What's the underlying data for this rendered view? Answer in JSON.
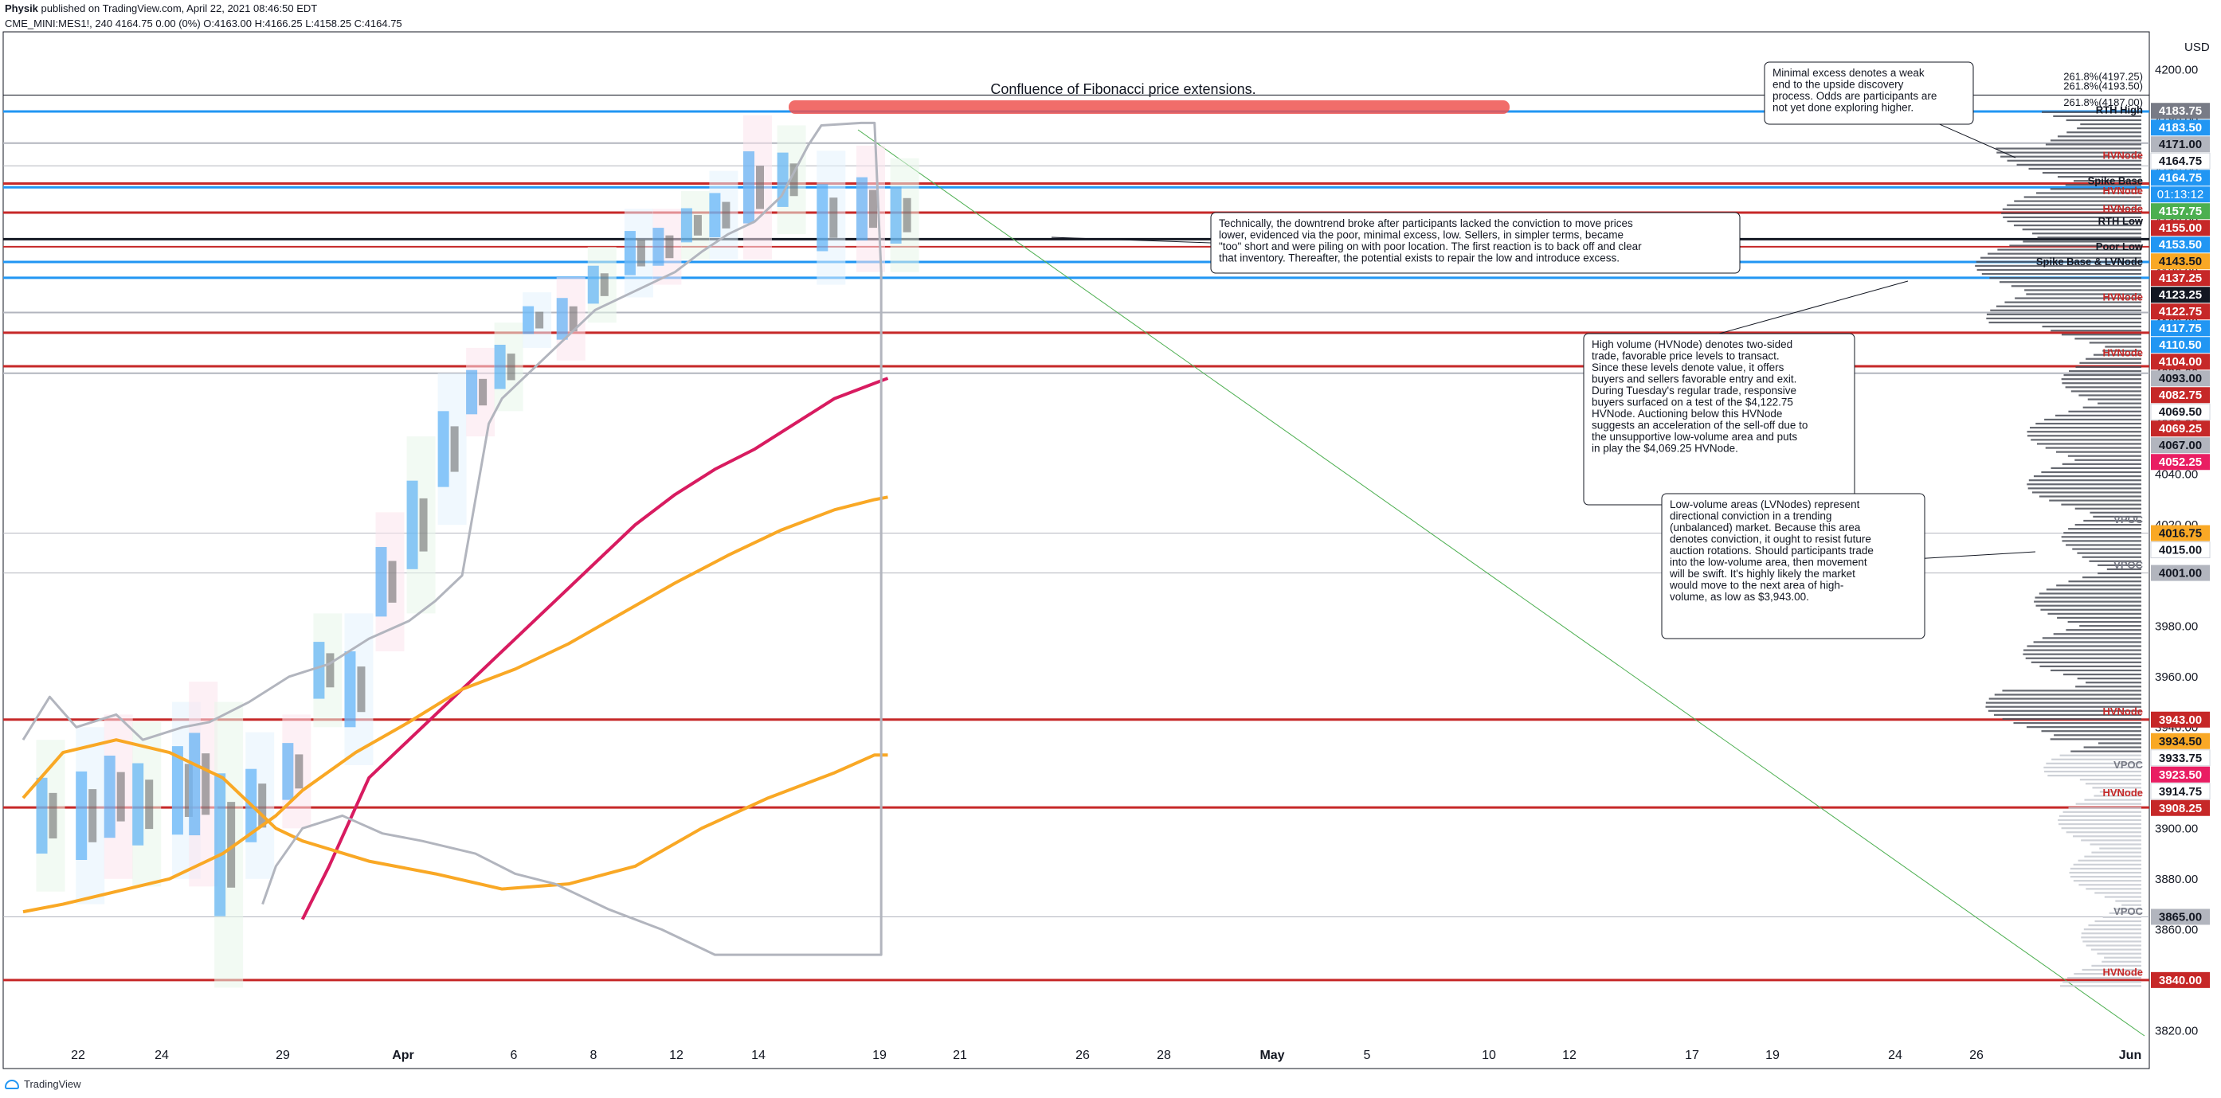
{
  "header": {
    "author": "Physik",
    "published": "published on TradingView.com, April 22, 2021 08:46:50 EDT",
    "symbol_line": "CME_MINI:MES1!, 240  4164.75 0.00 (0%) O:4163.00 H:4166.25 L:4158.25 C:4164.75"
  },
  "footer": {
    "brand": "TradingView"
  },
  "chart_data": {
    "type": "line",
    "title": "Confluence of Fibonacci price extensions.",
    "currency_label": "USD",
    "ylim": [
      3805,
      4215
    ],
    "y_ticks": [
      3820,
      3840,
      3860,
      3880,
      3900,
      3920,
      3940,
      3960,
      3980,
      4000,
      4020,
      4040,
      4060,
      4080,
      4100,
      4120,
      4140,
      4160,
      4180,
      4200
    ],
    "y_tick_labels": [
      "3820.00",
      "3840.00",
      "3860.00",
      "3880.00",
      "3900.00",
      "3920.00",
      "3940.00",
      "3960.00",
      "3980.00",
      "4000.00",
      "4020.00",
      "4040.00",
      "4060.00",
      "4080.00",
      "4100.00",
      "4120.00",
      "4140.00",
      "4160.00",
      "4180.00",
      "4200.00"
    ],
    "x_ticks": [
      "22",
      "24",
      "29",
      "Apr",
      "6",
      "8",
      "12",
      "14",
      "19",
      "21",
      "26",
      "28",
      "May",
      "5",
      "10",
      "12",
      "17",
      "19",
      "24",
      "26",
      "Jun"
    ],
    "price_tags": [
      {
        "value": 4183.75,
        "text": "4183.75",
        "color": "#787b86"
      },
      {
        "value": 4183.5,
        "text": "4183.50",
        "color": "#2196f3"
      },
      {
        "value": 4171.0,
        "text": "4171.00",
        "color": "#b2b5be"
      },
      {
        "value": 4164.75,
        "text": "4164.75",
        "color": "#ffffff"
      },
      {
        "value": 4164.75,
        "text": "4164.75",
        "color": "#2196f3"
      },
      {
        "value": 4157.75,
        "text": "4157.75",
        "color": "#4caf50"
      },
      {
        "value": 4155.0,
        "text": "4155.00",
        "color": "#c62828"
      },
      {
        "value": 4153.5,
        "text": "4153.50",
        "color": "#2196f3"
      },
      {
        "value": 4143.5,
        "text": "4143.50",
        "color": "#f9a825"
      },
      {
        "value": 4137.25,
        "text": "4137.25",
        "color": "#c62828"
      },
      {
        "value": 4123.25,
        "text": "4123.25",
        "color": "#131722"
      },
      {
        "value": 4122.75,
        "text": "4122.75",
        "color": "#c62828"
      },
      {
        "value": 4117.75,
        "text": "4117.75",
        "color": "#2196f3"
      },
      {
        "value": 4110.5,
        "text": "4110.50",
        "color": "#2196f3"
      },
      {
        "value": 4104.0,
        "text": "4104.00",
        "color": "#c62828"
      },
      {
        "value": 4093.0,
        "text": "4093.00",
        "color": "#b2b5be"
      },
      {
        "value": 4082.75,
        "text": "4082.75",
        "color": "#c62828"
      },
      {
        "value": 4069.5,
        "text": "4069.50",
        "color": "#ffffff"
      },
      {
        "value": 4069.25,
        "text": "4069.25",
        "color": "#c62828"
      },
      {
        "value": 4067.0,
        "text": "4067.00",
        "color": "#b2b5be"
      },
      {
        "value": 4052.25,
        "text": "4052.25",
        "color": "#e91e63"
      },
      {
        "value": 4016.75,
        "text": "4016.75",
        "color": "#f9a825"
      },
      {
        "value": 4015.0,
        "text": "4015.00",
        "color": "#ffffff"
      },
      {
        "value": 4001.0,
        "text": "4001.00",
        "color": "#b2b5be"
      },
      {
        "value": 3943.0,
        "text": "3943.00",
        "color": "#c62828"
      },
      {
        "value": 3934.5,
        "text": "3934.50",
        "color": "#f9a825"
      },
      {
        "value": 3933.75,
        "text": "3933.75",
        "color": "#ffffff"
      },
      {
        "value": 3923.5,
        "text": "3923.50",
        "color": "#e91e63"
      },
      {
        "value": 3914.75,
        "text": "3914.75",
        "color": "#ffffff"
      },
      {
        "value": 3908.25,
        "text": "3908.25",
        "color": "#c62828"
      },
      {
        "value": 3865.0,
        "text": "3865.00",
        "color": "#b2b5be"
      },
      {
        "value": 3840.0,
        "text": "3840.00",
        "color": "#c62828"
      }
    ],
    "countdown": "01:13:12",
    "level_labels": [
      {
        "text": "261.8%(4197.25)",
        "value": 4197.25
      },
      {
        "text": "261.8%(4193.50)",
        "value": 4193.5
      },
      {
        "text": "261.8%(4187.00)",
        "value": 4187
      },
      {
        "text": "RTH High",
        "value": 4184
      },
      {
        "text": "HVNode",
        "value": 4166
      },
      {
        "text": "Spike Base",
        "value": 4156
      },
      {
        "text": "HVNode",
        "value": 4152
      },
      {
        "text": "HVNode",
        "value": 4145
      },
      {
        "text": "RTH Low",
        "value": 4140
      },
      {
        "text": "Poor Low",
        "value": 4130
      },
      {
        "text": "Spike Base & LVNode",
        "value": 4124
      },
      {
        "text": "HVNode",
        "value": 4110
      },
      {
        "text": "HVNode",
        "value": 4088
      },
      {
        "text": "VPOC",
        "value": 4022
      },
      {
        "text": "VPOC",
        "value": 4004
      },
      {
        "text": "HVNode",
        "value": 3946
      },
      {
        "text": "VPOC",
        "value": 3925
      },
      {
        "text": "HVNode",
        "value": 3914
      },
      {
        "text": "VPOC",
        "value": 3867
      },
      {
        "text": "HVNode",
        "value": 3843
      }
    ],
    "horizontal_levels": [
      {
        "value": 4190,
        "color": "#131722",
        "width": 1
      },
      {
        "value": 4183.5,
        "color": "#2196f3",
        "width": 3
      },
      {
        "value": 4171,
        "color": "#b2b5be",
        "width": 2
      },
      {
        "value": 4162,
        "color": "#b2b5be",
        "width": 1
      },
      {
        "value": 4155,
        "color": "#c62828",
        "width": 3
      },
      {
        "value": 4153.5,
        "color": "#2196f3",
        "width": 3
      },
      {
        "value": 4143.5,
        "color": "#c62828",
        "width": 3
      },
      {
        "value": 4133,
        "color": "#131722",
        "width": 3
      },
      {
        "value": 4130,
        "color": "#c62828",
        "width": 2
      },
      {
        "value": 4124,
        "color": "#2196f3",
        "width": 3
      },
      {
        "value": 4117.75,
        "color": "#2196f3",
        "width": 3
      },
      {
        "value": 4104,
        "color": "#b2b5be",
        "width": 2
      },
      {
        "value": 4096,
        "color": "#c62828",
        "width": 3
      },
      {
        "value": 4082.75,
        "color": "#c62828",
        "width": 3
      },
      {
        "value": 4080,
        "color": "#b2b5be",
        "width": 2
      },
      {
        "value": 4016.75,
        "color": "#b2b5be",
        "width": 1
      },
      {
        "value": 4001,
        "color": "#b2b5be",
        "width": 1
      },
      {
        "value": 3943,
        "color": "#c62828",
        "width": 3
      },
      {
        "value": 3908.25,
        "color": "#c62828",
        "width": 3
      },
      {
        "value": 3865,
        "color": "#b2b5be",
        "width": 1
      },
      {
        "value": 3840,
        "color": "#c62828",
        "width": 3
      }
    ],
    "series": [
      {
        "color": "#d81b60",
        "points": [
          [
            21,
            3864
          ],
          [
            23,
            3885
          ],
          [
            26,
            3920
          ],
          [
            29,
            3935
          ],
          [
            31,
            3945
          ],
          [
            34,
            3960
          ],
          [
            37,
            3975
          ],
          [
            40,
            3990
          ],
          [
            43,
            4005
          ],
          [
            46,
            4020
          ],
          [
            49,
            4032
          ],
          [
            52,
            4042
          ],
          [
            55,
            4050
          ],
          [
            58,
            4060
          ],
          [
            61,
            4070
          ],
          [
            64,
            4076
          ],
          [
            65,
            4078
          ]
        ]
      },
      {
        "color": "#f9a825",
        "points": [
          [
            0,
            3867
          ],
          [
            3,
            3870
          ],
          [
            7,
            3875
          ],
          [
            11,
            3880
          ],
          [
            15,
            3890
          ],
          [
            19,
            3905
          ],
          [
            21,
            3915
          ],
          [
            25,
            3930
          ],
          [
            29,
            3942
          ],
          [
            33,
            3955
          ],
          [
            37,
            3963
          ],
          [
            41,
            3973
          ],
          [
            45,
            3985
          ],
          [
            49,
            3997
          ],
          [
            53,
            4008
          ],
          [
            57,
            4018
          ],
          [
            61,
            4026
          ],
          [
            64,
            4030
          ],
          [
            65,
            4031
          ]
        ]
      },
      {
        "color": "#f9a825",
        "points": [
          [
            0,
            3912
          ],
          [
            3,
            3930
          ],
          [
            7,
            3935
          ],
          [
            11,
            3930
          ],
          [
            15,
            3920
          ],
          [
            19,
            3900
          ],
          [
            21,
            3895
          ],
          [
            26,
            3887
          ],
          [
            31,
            3882
          ],
          [
            36,
            3876
          ],
          [
            41,
            3878
          ],
          [
            46,
            3885
          ],
          [
            51,
            3900
          ],
          [
            56,
            3912
          ],
          [
            61,
            3922
          ],
          [
            64,
            3929
          ],
          [
            65,
            3929
          ]
        ]
      },
      {
        "color": "#b2b5be",
        "points": [
          [
            0,
            3935
          ],
          [
            2,
            3952
          ],
          [
            4,
            3940
          ],
          [
            7,
            3945
          ],
          [
            9,
            3935
          ],
          [
            12,
            3940
          ],
          [
            14,
            3942
          ],
          [
            17,
            3950
          ],
          [
            20,
            3960
          ],
          [
            23,
            3965
          ],
          [
            26,
            3975
          ],
          [
            29,
            3982
          ],
          [
            31,
            3990
          ],
          [
            33,
            4000
          ],
          [
            34,
            4030
          ],
          [
            35,
            4060
          ],
          [
            36,
            4070
          ],
          [
            37,
            4075
          ],
          [
            39,
            4085
          ],
          [
            41,
            4095
          ],
          [
            43,
            4105
          ],
          [
            45,
            4110
          ],
          [
            47,
            4115
          ],
          [
            49,
            4120
          ],
          [
            51,
            4128
          ],
          [
            53,
            4135
          ],
          [
            55,
            4140
          ],
          [
            57,
            4150
          ],
          [
            58,
            4160
          ],
          [
            59,
            4170
          ],
          [
            60,
            4178
          ],
          [
            63,
            4179
          ],
          [
            64,
            4179
          ],
          [
            64.5,
            4120
          ],
          [
            64.5,
            3850
          ],
          [
            60,
            3850
          ],
          [
            52,
            3850
          ],
          [
            48,
            3860
          ],
          [
            44,
            3868
          ],
          [
            40,
            3878
          ],
          [
            37,
            3882
          ],
          [
            34,
            3890
          ],
          [
            30,
            3895
          ],
          [
            27,
            3898
          ],
          [
            24,
            3905
          ],
          [
            21,
            3900
          ],
          [
            19,
            3885
          ],
          [
            18,
            3870
          ]
        ]
      }
    ],
    "annotations": [
      {
        "text": "Minimal excess denotes a weak end to the upside discovery process. Odds are participants are not yet done exploring higher."
      },
      {
        "text": "Technically, the downtrend broke after participants lacked the conviction to move prices lower, evidenced via the poor, minimal excess, low. Sellers, in simpler terms, became \"too\" short and were piling on with poor location. The first reaction is to back off and clear that inventory. Thereafter, the potential exists to repair the low and introduce excess."
      },
      {
        "text": "High volume (HVNode) denotes two-sided trade, favorable price levels to transact. Since these levels denote value, it offers buyers and sellers favorable entry and exit."
      },
      {
        "text": "During Tuesday's regular trade, responsive buyers surfaced on a test of the $4,122.75 HVNode. Auctioning below this HVNode suggests an acceleration of the sell-off due to the unsupportive low-volume area and puts in play the $4,069.25 HVNode."
      },
      {
        "text": "Low-volume areas (LVNodes) represent directional conviction in a trending (unbalanced) market. Because this area denotes conviction, it ought to resist future auction rotations. Should participants trade into the low-volume area, then movement will be swift. It's highly likely the market would move to the next area of high-volume, as low as $3,943.00."
      }
    ]
  }
}
